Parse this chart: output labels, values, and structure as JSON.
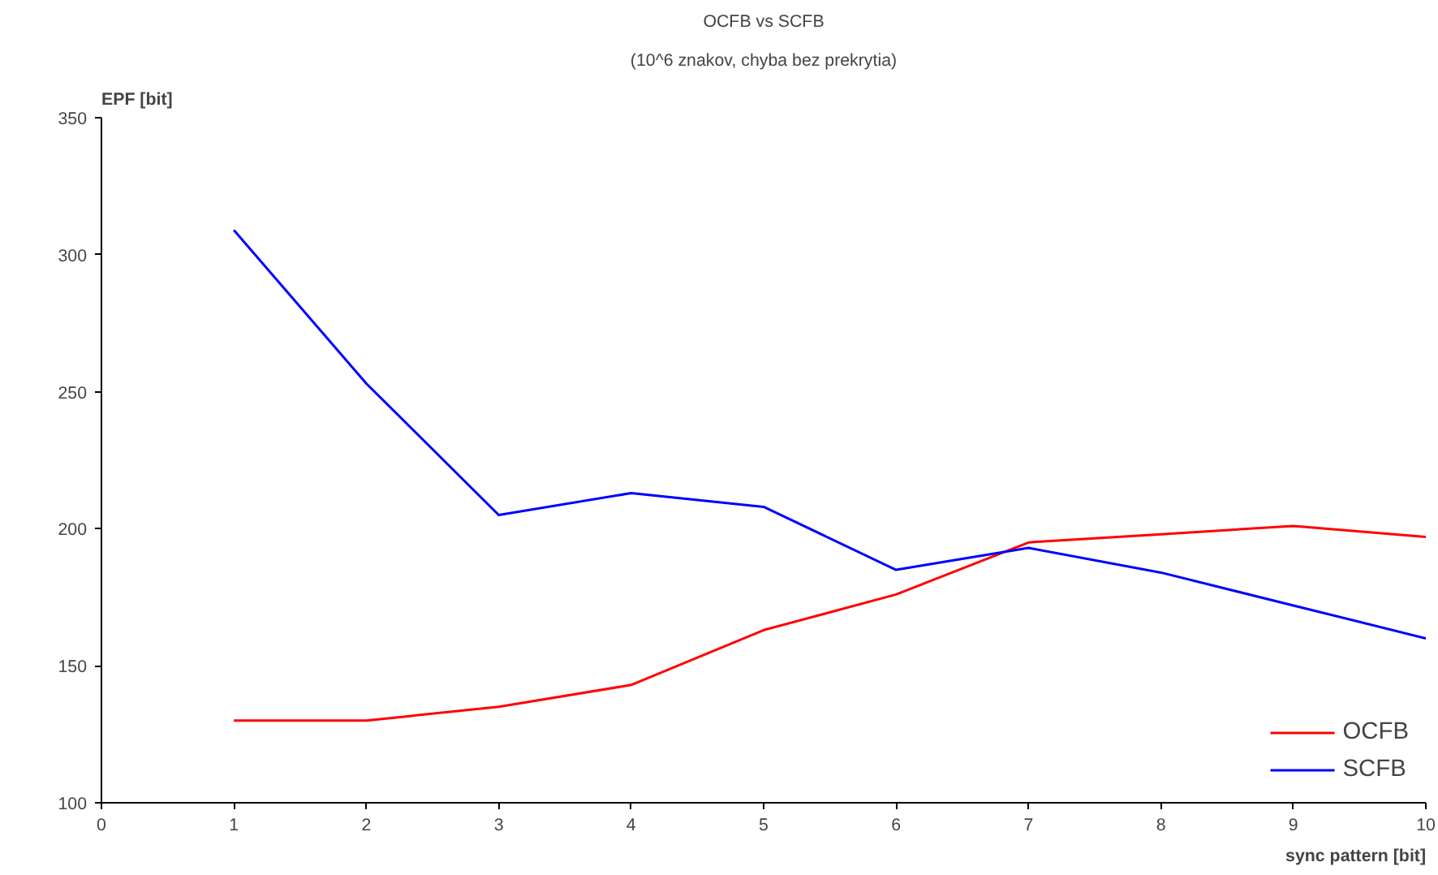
{
  "chart_data": {
    "type": "line",
    "title": "OCFB vs SCFB",
    "subtitle": "(10^6 znakov, chyba bez prekrytia)",
    "xlabel": "sync pattern [bit]",
    "ylabel": "EPF [bit]",
    "x": [
      1,
      2,
      3,
      4,
      5,
      6,
      7,
      8,
      9,
      10
    ],
    "series": [
      {
        "name": "OCFB",
        "color": "#ff0000",
        "values": [
          130,
          130,
          135,
          143,
          163,
          176,
          195,
          198,
          201,
          197
        ]
      },
      {
        "name": "SCFB",
        "color": "#0000ff",
        "values": [
          309,
          253,
          205,
          213,
          208,
          185,
          193,
          184,
          172,
          160
        ]
      }
    ],
    "xlim": [
      0,
      10
    ],
    "xticks": [
      0,
      1,
      2,
      3,
      4,
      5,
      6,
      7,
      8,
      9,
      10
    ],
    "ylim": [
      100,
      350
    ],
    "yticks": [
      100,
      150,
      200,
      250,
      300,
      350
    ],
    "grid": false,
    "legend": "bottom right"
  }
}
